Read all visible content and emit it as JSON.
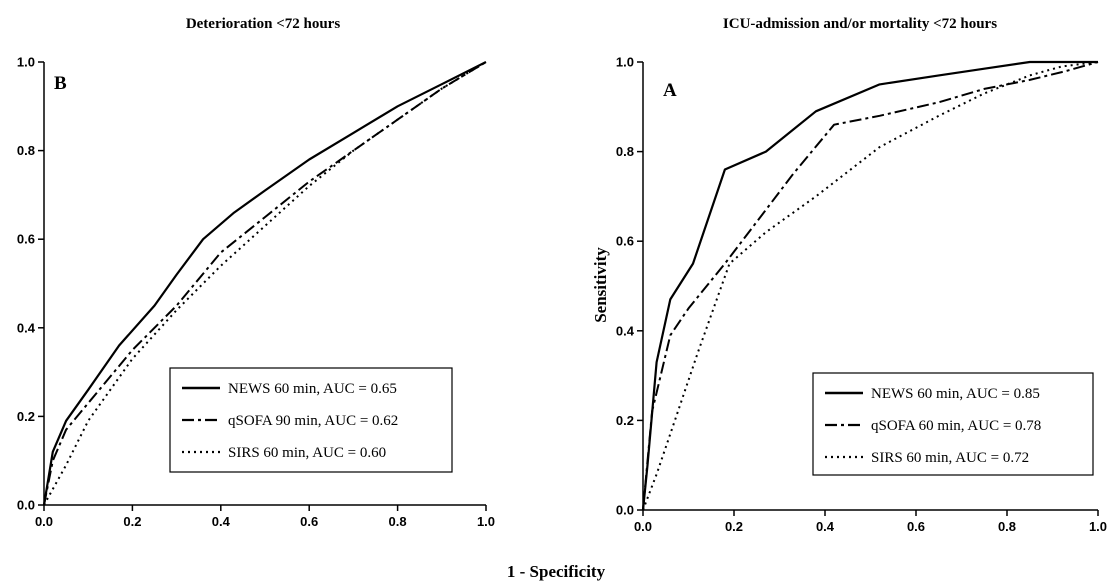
{
  "figure": {
    "shared_xlabel": "1 - Specificity"
  },
  "chart_data": [
    {
      "type": "line",
      "title": "Deterioration <72 hours",
      "panel_label": "B",
      "xlabel": "",
      "ylabel": "",
      "xlim": [
        0,
        1
      ],
      "ylim": [
        0,
        1
      ],
      "xticks": [
        "0.0",
        "0.2",
        "0.4",
        "0.6",
        "0.8",
        "1.0"
      ],
      "yticks": [
        "0.0",
        "0.2",
        "0.4",
        "0.6",
        "0.8",
        "1.0"
      ],
      "grid": false,
      "legend_position": "bottom-right",
      "series": [
        {
          "name": "NEWS 60 min, AUC = 0.65",
          "style": "solid",
          "x": [
            0,
            0.02,
            0.05,
            0.1,
            0.17,
            0.25,
            0.3,
            0.36,
            0.43,
            0.5,
            0.6,
            0.7,
            0.8,
            0.9,
            1.0
          ],
          "y": [
            0,
            0.12,
            0.19,
            0.26,
            0.36,
            0.45,
            0.52,
            0.6,
            0.66,
            0.71,
            0.78,
            0.84,
            0.9,
            0.95,
            1.0
          ]
        },
        {
          "name": "qSOFA 90 min,  AUC = 0.62",
          "style": "dashdot",
          "x": [
            0,
            0.02,
            0.05,
            0.1,
            0.2,
            0.3,
            0.4,
            0.5,
            0.6,
            0.7,
            0.8,
            0.9,
            1.0
          ],
          "y": [
            0,
            0.1,
            0.17,
            0.23,
            0.35,
            0.45,
            0.57,
            0.65,
            0.73,
            0.8,
            0.87,
            0.94,
            1.0
          ]
        },
        {
          "name": "SIRS 60 min, AUC = 0.60",
          "style": "dotted",
          "x": [
            0,
            0.05,
            0.1,
            0.2,
            0.3,
            0.4,
            0.5,
            0.6,
            0.7,
            0.8,
            0.9,
            1.0
          ],
          "y": [
            0,
            0.09,
            0.19,
            0.33,
            0.44,
            0.54,
            0.63,
            0.72,
            0.8,
            0.87,
            0.94,
            1.0
          ]
        }
      ]
    },
    {
      "type": "line",
      "title": "ICU-admission and/or mortality <72 hours",
      "panel_label": "A",
      "xlabel": "",
      "ylabel": "Sensitivity",
      "xlim": [
        0,
        1
      ],
      "ylim": [
        0,
        1
      ],
      "xticks": [
        "0.0",
        "0.2",
        "0.4",
        "0.6",
        "0.8",
        "1.0"
      ],
      "yticks": [
        "0.0",
        "0.2",
        "0.4",
        "0.6",
        "0.8",
        "1.0"
      ],
      "grid": false,
      "legend_position": "bottom-right",
      "series": [
        {
          "name": "NEWS 60 min, AUC = 0.85",
          "style": "solid",
          "x": [
            0,
            0.01,
            0.03,
            0.06,
            0.11,
            0.18,
            0.27,
            0.38,
            0.52,
            0.65,
            0.75,
            0.85,
            0.9,
            1.0
          ],
          "y": [
            0,
            0.1,
            0.33,
            0.47,
            0.55,
            0.76,
            0.8,
            0.89,
            0.95,
            0.97,
            0.985,
            1.0,
            1.0,
            1.0
          ]
        },
        {
          "name": "qSOFA 60 min,  AUC = 0.78",
          "style": "dashdot",
          "x": [
            0,
            0.02,
            0.06,
            0.1,
            0.18,
            0.27,
            0.33,
            0.42,
            0.52,
            0.65,
            0.75,
            0.85,
            0.93,
            1.0
          ],
          "y": [
            0,
            0.22,
            0.39,
            0.45,
            0.55,
            0.67,
            0.75,
            0.86,
            0.88,
            0.91,
            0.94,
            0.96,
            0.98,
            1.0
          ]
        },
        {
          "name": "SIRS 60 min,  AUC = 0.72",
          "style": "dotted",
          "x": [
            0,
            0.03,
            0.07,
            0.12,
            0.19,
            0.27,
            0.38,
            0.52,
            0.65,
            0.75,
            0.85,
            0.92,
            1.0
          ],
          "y": [
            0,
            0.08,
            0.2,
            0.35,
            0.55,
            0.62,
            0.7,
            0.81,
            0.88,
            0.93,
            0.97,
            0.99,
            1.0
          ]
        }
      ]
    }
  ]
}
